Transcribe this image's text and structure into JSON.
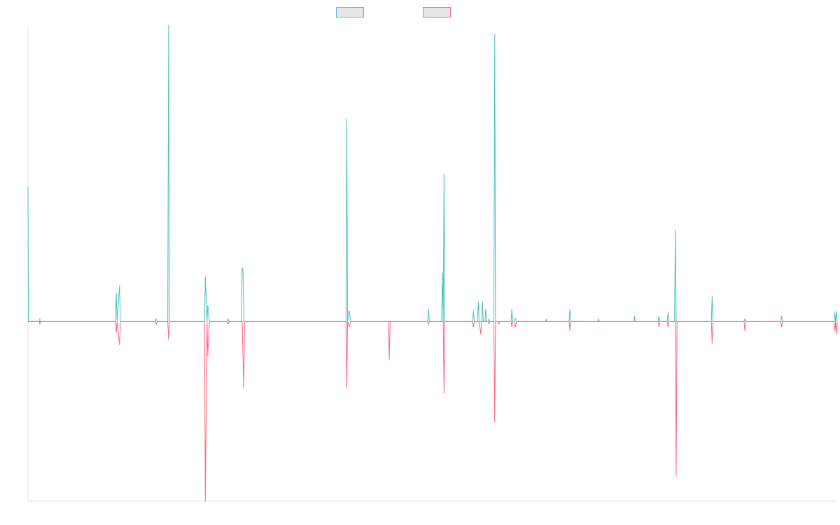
{
  "chart_data": {
    "type": "line",
    "title": "",
    "xlabel": "",
    "ylabel": "",
    "ylim": [
      -100,
      165
    ],
    "grid": false,
    "legend": "top-center",
    "legend_style": "swatch-only",
    "colors": {
      "series_a": "#4bc0c0",
      "series_b": "#ff6384",
      "legend_fill": "#e6e6e6",
      "axis": "#e5e5e5",
      "background": "#ffffff"
    },
    "series": [
      {
        "color": "#4bc0c0",
        "points": [
          [
            0,
            75
          ],
          [
            0.5,
            0
          ],
          [
            14,
            0
          ],
          [
            14.5,
            1.5
          ],
          [
            15,
            0
          ],
          [
            107,
            0
          ],
          [
            108,
            16
          ],
          [
            109,
            0
          ],
          [
            112,
            20
          ],
          [
            113,
            0
          ],
          [
            156,
            0
          ],
          [
            157,
            1.5
          ],
          [
            158,
            0
          ],
          [
            171,
            0
          ],
          [
            172,
            165
          ],
          [
            173,
            0
          ],
          [
            216,
            0
          ],
          [
            217,
            25
          ],
          [
            219,
            0
          ],
          [
            220,
            9
          ],
          [
            222,
            0
          ],
          [
            244,
            0
          ],
          [
            245,
            1.5
          ],
          [
            246,
            0
          ],
          [
            261,
            0
          ],
          [
            262,
            30
          ],
          [
            263,
            29
          ],
          [
            264,
            0
          ],
          [
            389,
            0
          ],
          [
            390,
            113
          ],
          [
            391,
            0
          ],
          [
            393,
            6
          ],
          [
            395,
            0
          ],
          [
            489,
            0
          ],
          [
            490,
            7
          ],
          [
            491,
            0
          ],
          [
            506,
            0
          ],
          [
            507,
            27
          ],
          [
            508,
            0
          ],
          [
            509,
            82
          ],
          [
            510,
            0
          ],
          [
            544,
            0
          ],
          [
            545,
            6
          ],
          [
            546,
            0
          ],
          [
            550,
            0
          ],
          [
            551,
            11
          ],
          [
            552,
            0
          ],
          [
            555,
            0
          ],
          [
            556,
            11
          ],
          [
            557,
            0
          ],
          [
            559,
            0
          ],
          [
            560,
            7
          ],
          [
            561,
            0
          ],
          [
            563,
            0
          ],
          [
            564,
            1.5
          ],
          [
            565,
            0
          ],
          [
            570,
            0
          ],
          [
            571,
            160
          ],
          [
            572,
            0
          ],
          [
            591,
            0
          ],
          [
            592,
            7
          ],
          [
            593,
            0
          ],
          [
            595,
            0
          ],
          [
            596,
            2
          ],
          [
            598,
            0
          ],
          [
            633,
            0
          ],
          [
            634,
            1.5
          ],
          [
            635,
            0
          ],
          [
            662,
            0
          ],
          [
            663,
            7
          ],
          [
            664,
            0
          ],
          [
            697,
            0
          ],
          [
            698,
            1.5
          ],
          [
            699,
            0
          ],
          [
            741,
            0
          ],
          [
            742,
            3
          ],
          [
            743,
            0
          ],
          [
            771,
            0
          ],
          [
            772,
            3
          ],
          [
            773,
            0
          ],
          [
            782,
            0
          ],
          [
            783,
            5
          ],
          [
            784,
            0
          ],
          [
            791,
            0
          ],
          [
            792,
            51
          ],
          [
            793,
            0
          ],
          [
            836,
            0
          ],
          [
            837,
            14
          ],
          [
            838,
            0
          ],
          [
            876,
            0
          ],
          [
            877,
            1.5
          ],
          [
            878,
            0
          ],
          [
            921,
            0
          ],
          [
            922,
            3
          ],
          [
            923,
            0
          ],
          [
            986,
            0
          ],
          [
            987,
            5
          ],
          [
            988,
            0
          ],
          [
            989,
            6
          ],
          [
            990,
            0
          ]
        ]
      },
      {
        "color": "#ff6384",
        "points": [
          [
            0,
            0
          ],
          [
            14,
            0
          ],
          [
            14.5,
            -1.5
          ],
          [
            15,
            0
          ],
          [
            107,
            0
          ],
          [
            108,
            -6
          ],
          [
            109,
            0
          ],
          [
            112,
            -13
          ],
          [
            113,
            0
          ],
          [
            156,
            0
          ],
          [
            157,
            -1.5
          ],
          [
            158,
            0
          ],
          [
            171,
            0
          ],
          [
            172,
            -10
          ],
          [
            173,
            0
          ],
          [
            216,
            0
          ],
          [
            217,
            -100
          ],
          [
            219,
            0
          ],
          [
            220,
            -19
          ],
          [
            222,
            0
          ],
          [
            244,
            0
          ],
          [
            245,
            -1.5
          ],
          [
            246,
            0
          ],
          [
            262,
            0
          ],
          [
            264,
            -37
          ],
          [
            265,
            0
          ],
          [
            389,
            0
          ],
          [
            390,
            -37
          ],
          [
            391,
            0
          ],
          [
            393,
            -3
          ],
          [
            395,
            0
          ],
          [
            441,
            0
          ],
          [
            442,
            -21
          ],
          [
            443,
            0
          ],
          [
            489,
            0
          ],
          [
            490,
            -1.5
          ],
          [
            491,
            0
          ],
          [
            508,
            0
          ],
          [
            509,
            -40
          ],
          [
            510,
            0
          ],
          [
            544,
            0
          ],
          [
            545,
            -3
          ],
          [
            546,
            0
          ],
          [
            552,
            0
          ],
          [
            554,
            -7
          ],
          [
            555,
            0
          ],
          [
            563,
            0
          ],
          [
            564,
            -1.5
          ],
          [
            565,
            0
          ],
          [
            570,
            0
          ],
          [
            571,
            -56
          ],
          [
            572,
            0
          ],
          [
            575,
            0
          ],
          [
            576,
            -1.5
          ],
          [
            577,
            0
          ],
          [
            591,
            0
          ],
          [
            592,
            -3
          ],
          [
            593,
            0
          ],
          [
            595,
            0
          ],
          [
            596,
            -3
          ],
          [
            598,
            0
          ],
          [
            662,
            0
          ],
          [
            663,
            -5
          ],
          [
            664,
            0
          ],
          [
            771,
            0
          ],
          [
            772,
            -3
          ],
          [
            773,
            0
          ],
          [
            782,
            0
          ],
          [
            783,
            -3
          ],
          [
            784,
            0
          ],
          [
            792,
            0
          ],
          [
            793,
            -86
          ],
          [
            794,
            0
          ],
          [
            836,
            0
          ],
          [
            837,
            -12
          ],
          [
            838,
            0
          ],
          [
            876,
            0
          ],
          [
            877,
            -5
          ],
          [
            878,
            0
          ],
          [
            921,
            0
          ],
          [
            922,
            -3
          ],
          [
            923,
            0
          ],
          [
            986,
            0
          ],
          [
            987,
            -5
          ],
          [
            988,
            0
          ],
          [
            989,
            -7
          ],
          [
            990,
            0
          ]
        ]
      }
    ]
  }
}
